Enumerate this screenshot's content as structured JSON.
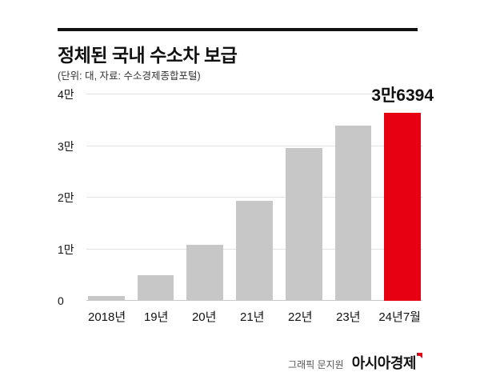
{
  "header": {
    "title": "정체된 국내 수소차 보급",
    "subtitle": "(단위: 대, 자료: 수소경제종합포털)"
  },
  "chart_data": {
    "type": "bar",
    "title": "정체된 국내 수소차 보급",
    "xlabel": "",
    "ylabel": "대",
    "categories": [
      "2018년",
      "19년",
      "20년",
      "21년",
      "22년",
      "23년",
      "24년7월"
    ],
    "values": [
      900,
      5000,
      10900,
      19400,
      29600,
      34000,
      36394
    ],
    "ylim": [
      0,
      40000
    ],
    "yticks": [
      {
        "value": 0,
        "label": "0"
      },
      {
        "value": 10000,
        "label": "1만"
      },
      {
        "value": 20000,
        "label": "2만"
      },
      {
        "value": 30000,
        "label": "3만"
      },
      {
        "value": 40000,
        "label": "4만"
      }
    ],
    "grid": true,
    "legend": "none",
    "bar_color": "#c7c7c7",
    "highlight_color": "#e60012",
    "highlight_index": 6,
    "annotation": {
      "label": "3만6394",
      "value": 36394,
      "category": "24년7월"
    }
  },
  "footer": {
    "credit": "그래픽 문지원",
    "brand": "아시아경제"
  }
}
